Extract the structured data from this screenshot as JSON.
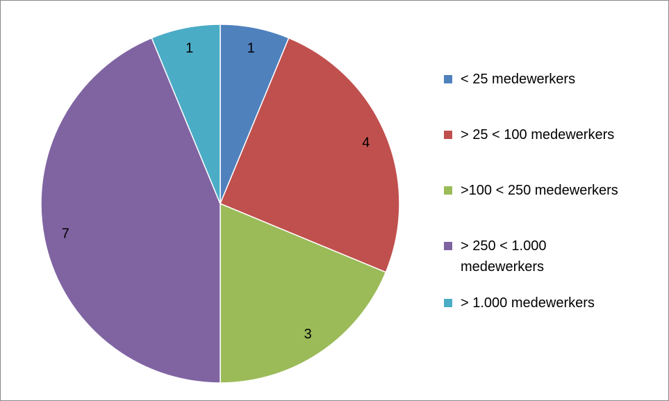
{
  "chart_data": {
    "type": "pie",
    "categories": [
      "< 25 medewerkers",
      "> 25 < 100 medewerkers",
      ">100 < 250 medewerkers",
      "> 250 < 1.000 medewerkers",
      "> 1.000 medewerkers"
    ],
    "values": [
      1,
      4,
      3,
      7,
      1
    ],
    "colors": [
      "#4f81bd",
      "#c0504d",
      "#9bbb59",
      "#8064a2",
      "#4bacc6"
    ],
    "legend": "right"
  }
}
